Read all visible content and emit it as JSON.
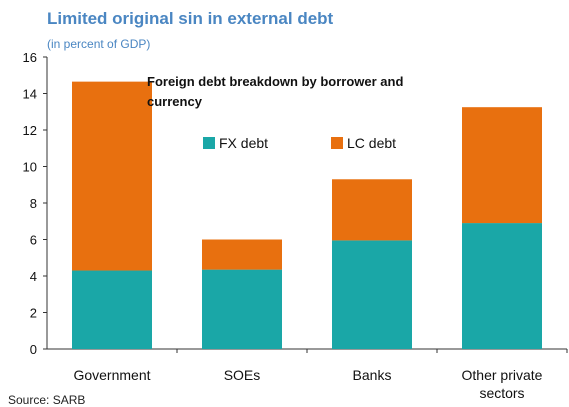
{
  "chart_data": {
    "type": "bar",
    "stacked": true,
    "title": "Limited original sin in external debt",
    "subtitle": "(in percent of GDP)",
    "inset_title": [
      "Foreign debt breakdown by borrower and",
      "currency"
    ],
    "categories": [
      "Government",
      "SOEs",
      "Banks",
      "Other private|sectors"
    ],
    "series": [
      {
        "name": "FX debt",
        "color": "#1aa7a7",
        "values": [
          4.3,
          4.35,
          5.95,
          6.9
        ]
      },
      {
        "name": "LC debt",
        "color": "#e8700f",
        "values": [
          10.35,
          1.65,
          3.35,
          6.35
        ]
      }
    ],
    "ylim": [
      0,
      16
    ],
    "yticks": [
      0,
      2,
      4,
      6,
      8,
      10,
      12,
      14,
      16
    ],
    "legend_position": "top-center",
    "grid": false,
    "source": "Source: SARB"
  }
}
